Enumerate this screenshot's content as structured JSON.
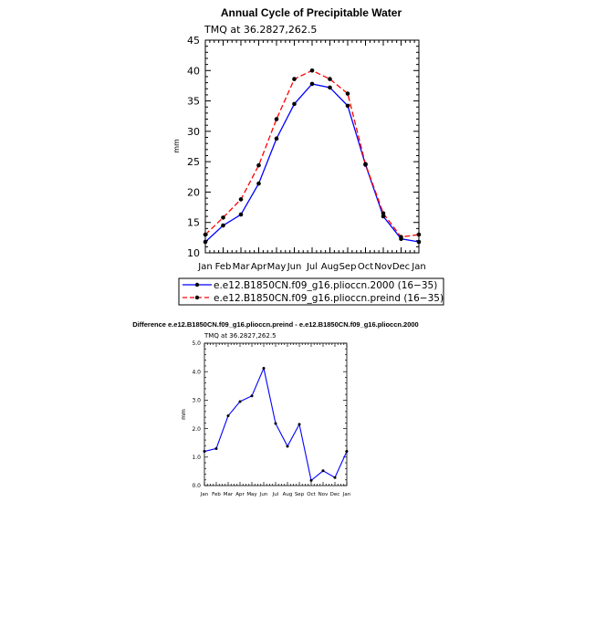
{
  "chart_data": [
    {
      "type": "line",
      "title": "Annual Cycle of Precipitable Water",
      "subtitle": "TMQ at 36.2827,262.5",
      "xlabel": "",
      "ylabel": "mm",
      "categories": [
        "Jan",
        "Feb",
        "Mar",
        "Apr",
        "May",
        "Jun",
        "Jul",
        "Aug",
        "Sep",
        "Oct",
        "Nov",
        "Dec",
        "Jan"
      ],
      "yticks": [
        "10",
        "15",
        "20",
        "25",
        "30",
        "35",
        "40",
        "45"
      ],
      "ylim": [
        10,
        45
      ],
      "legend_position": "bottom",
      "series": [
        {
          "name": "e.e12.B1850CN.f09_g16.plioccn.2000 (16−35)",
          "color": "#0000ff",
          "style": "solid",
          "values": [
            11.8,
            14.5,
            16.3,
            21.4,
            28.8,
            34.5,
            37.8,
            37.2,
            34.2,
            24.5,
            16.0,
            12.3,
            11.8
          ]
        },
        {
          "name": "e.e12.B1850CN.f09_g16.plioccn.preind (16−35)",
          "color": "#ff0000",
          "style": "dashed",
          "values": [
            13.0,
            15.8,
            18.8,
            24.4,
            32.0,
            38.6,
            40.0,
            38.6,
            36.2,
            24.6,
            16.5,
            12.6,
            13.0
          ]
        }
      ]
    },
    {
      "type": "line",
      "title": "Difference e.e12.B1850CN.f09_g16.plioccn.preind - e.e12.B1850CN.f09_g16.plioccn.2000",
      "subtitle": "TMQ at 36.2827,262.5",
      "xlabel": "",
      "ylabel": "mm",
      "categories": [
        "Jan",
        "Feb",
        "Mar",
        "Apr",
        "May",
        "Jun",
        "Jul",
        "Aug",
        "Sep",
        "Oct",
        "Nov",
        "Dec",
        "Jan"
      ],
      "yticks": [
        "0.0",
        "1.0",
        "2.0",
        "3.0",
        "4.0",
        "5.0"
      ],
      "ylim": [
        0,
        5
      ],
      "series": [
        {
          "name": "Difference",
          "color": "#0000ff",
          "style": "solid",
          "values": [
            1.2,
            1.3,
            2.45,
            2.95,
            3.15,
            4.12,
            2.18,
            1.38,
            2.15,
            0.18,
            0.52,
            0.28,
            1.2
          ]
        }
      ]
    }
  ]
}
